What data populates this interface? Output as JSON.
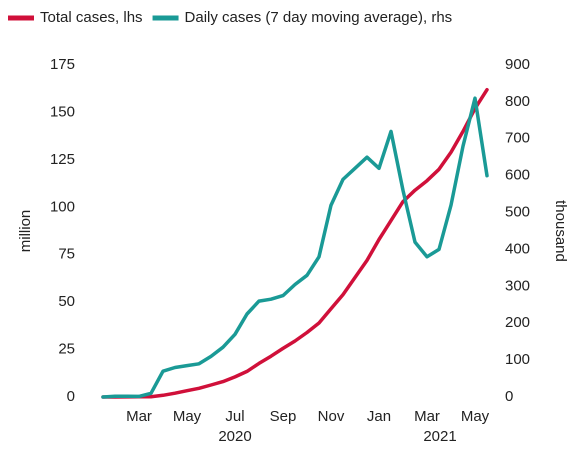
{
  "chart_data": {
    "type": "line",
    "categories": [
      null,
      null,
      null,
      null,
      "Mar",
      null,
      null,
      null,
      "May",
      null,
      null,
      null,
      "Jul",
      null,
      null,
      null,
      "Sep",
      null,
      null,
      null,
      "Nov",
      null,
      null,
      null,
      "Jan",
      null,
      null,
      null,
      "Mar",
      null,
      null,
      null,
      "May",
      null
    ],
    "x_group_labels": [
      "2020",
      "2021"
    ],
    "ylabel": "million",
    "y2label": "thousand",
    "ylim": [
      0,
      175
    ],
    "yticks": [
      0,
      25,
      50,
      75,
      100,
      125,
      150,
      175
    ],
    "y2lim": [
      0,
      900
    ],
    "y2ticks": [
      0,
      100,
      200,
      300,
      400,
      500,
      600,
      700,
      800,
      900
    ],
    "grid": false,
    "legend": "top",
    "series": [
      {
        "name": "Total cases, lhs",
        "color": "#d0103a",
        "axis": "y",
        "values": [
          null,
          0,
          0.01,
          0.07,
          0.09,
          0.17,
          0.9,
          2.0,
          3.3,
          4.6,
          6.3,
          8.1,
          10.6,
          13.5,
          17.7,
          21.5,
          25.6,
          29.5,
          34,
          39,
          46.5,
          54,
          63,
          72,
          83,
          93,
          103,
          109,
          114,
          120,
          129,
          140,
          152,
          162
        ]
      },
      {
        "name": "Daily cases (7 day moving average), rhs",
        "color": "#1a9a96",
        "axis": "y2",
        "values": [
          null,
          0,
          2,
          2,
          1.5,
          10,
          70,
          80,
          85,
          90,
          110,
          135,
          170,
          225,
          260,
          265,
          275,
          305,
          330,
          380,
          520,
          590,
          620,
          650,
          620,
          720,
          560,
          420,
          380,
          400,
          520,
          680,
          810,
          600
        ]
      }
    ]
  }
}
